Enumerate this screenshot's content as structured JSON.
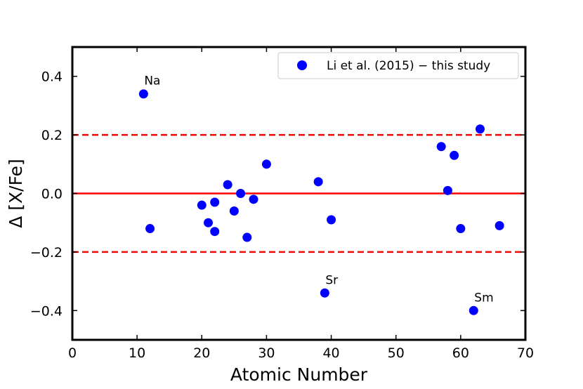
{
  "chart_data": {
    "type": "scatter",
    "xlabel": "Atomic Number",
    "ylabel": "Δ [X/Fe]",
    "xlim": [
      0,
      70
    ],
    "ylim": [
      -0.5,
      0.5
    ],
    "xticks": [
      0,
      10,
      20,
      30,
      40,
      50,
      60,
      70
    ],
    "yticks": [
      0.4,
      0.2,
      0.0,
      -0.2,
      -0.4
    ],
    "xtick_labels": [
      "0",
      "10",
      "20",
      "30",
      "40",
      "50",
      "60",
      "70"
    ],
    "ytick_labels": [
      "0.4",
      "0.2",
      "0.0",
      "−0.2",
      "−0.4"
    ],
    "grid": false,
    "legend_position": "top-right",
    "series": [
      {
        "name": "Li et al. (2015) − this study",
        "color": "#0000ff",
        "marker": "circle",
        "points": [
          {
            "x": 11,
            "y": 0.34
          },
          {
            "x": 12,
            "y": -0.12
          },
          {
            "x": 20,
            "y": -0.04
          },
          {
            "x": 21,
            "y": -0.1
          },
          {
            "x": 22,
            "y": -0.03
          },
          {
            "x": 22,
            "y": -0.13
          },
          {
            "x": 24,
            "y": 0.03
          },
          {
            "x": 25,
            "y": -0.06
          },
          {
            "x": 26,
            "y": 0.0
          },
          {
            "x": 27,
            "y": -0.15
          },
          {
            "x": 28,
            "y": -0.02
          },
          {
            "x": 30,
            "y": 0.1
          },
          {
            "x": 38,
            "y": 0.04
          },
          {
            "x": 39,
            "y": -0.34
          },
          {
            "x": 40,
            "y": -0.09
          },
          {
            "x": 57,
            "y": 0.16
          },
          {
            "x": 58,
            "y": 0.01
          },
          {
            "x": 59,
            "y": 0.13
          },
          {
            "x": 60,
            "y": -0.12
          },
          {
            "x": 62,
            "y": -0.4
          },
          {
            "x": 63,
            "y": 0.22
          },
          {
            "x": 66,
            "y": -0.11
          }
        ]
      }
    ],
    "reference_lines": [
      {
        "y": 0.0,
        "style": "solid",
        "color": "#ff0000"
      },
      {
        "y": 0.2,
        "style": "dashed",
        "color": "#ff0000"
      },
      {
        "y": -0.2,
        "style": "dashed",
        "color": "#ff0000"
      }
    ],
    "annotations": [
      {
        "text": "Na",
        "x": 11,
        "y": 0.34
      },
      {
        "text": "Sr",
        "x": 39,
        "y": -0.34
      },
      {
        "text": "Sm",
        "x": 62,
        "y": -0.4
      }
    ]
  }
}
